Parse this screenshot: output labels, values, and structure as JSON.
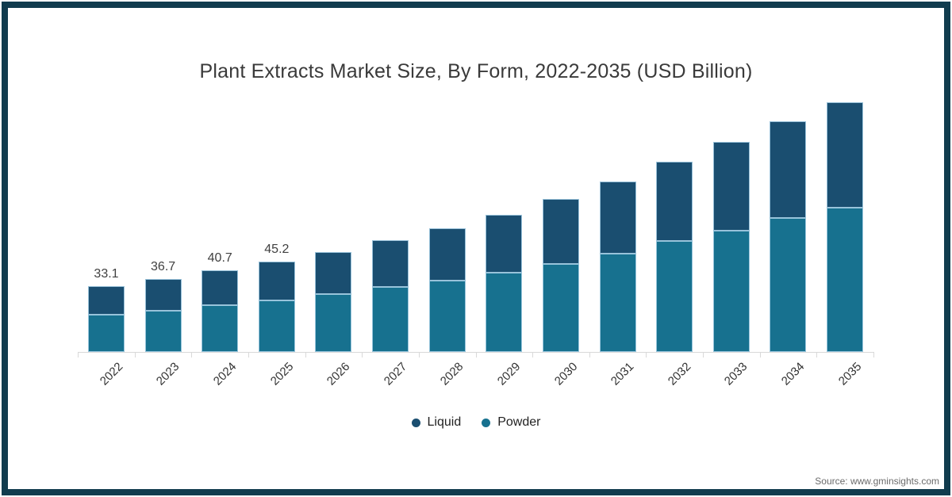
{
  "title": "Plant Extracts Market Size, By Form, 2022-2035 (USD Billion)",
  "source_note": "Source: www.gminsights.com",
  "colors": {
    "liquid": "#1a4e70",
    "powder": "#17718f",
    "segment_stroke": "#a6cee4",
    "frame_border": "#113c4e",
    "axis_line": "#d9d9d9"
  },
  "legend": {
    "items": [
      {
        "label": "Liquid",
        "color": "#1a4e70"
      },
      {
        "label": "Powder",
        "color": "#17718f"
      }
    ]
  },
  "chart_data": {
    "type": "bar",
    "stacked": true,
    "title": "Plant Extracts Market Size, By Form, 2022-2035 (USD Billion)",
    "xlabel": "",
    "ylabel": "USD Billion",
    "ylim": [
      0,
      133
    ],
    "grid": false,
    "legend_position": "bottom",
    "categories": [
      "2022",
      "2023",
      "2024",
      "2025",
      "2026",
      "2027",
      "2028",
      "2029",
      "2030",
      "2031",
      "2032",
      "2033",
      "2034",
      "2035"
    ],
    "series": [
      {
        "name": "Liquid",
        "color": "#1a4e70",
        "values": [
          14.3,
          15.9,
          17.3,
          19.4,
          21.0,
          23.3,
          26.3,
          29.1,
          32.4,
          36.2,
          40.0,
          44.5,
          48.4,
          52.9
        ]
      },
      {
        "name": "Powder",
        "color": "#17718f",
        "values": [
          18.8,
          20.8,
          23.4,
          25.8,
          29.1,
          32.5,
          35.6,
          39.7,
          44.2,
          49.3,
          55.4,
          60.7,
          67.1,
          72.3
        ]
      }
    ],
    "totals": [
      33.1,
      36.7,
      40.7,
      45.2,
      50.1,
      55.8,
      61.9,
      68.8,
      76.6,
      85.5,
      95.4,
      105.2,
      115.5,
      125.2
    ],
    "total_labels_shown": [
      "33.1",
      "36.7",
      "40.7",
      "45.2",
      "",
      "",
      "",
      "",
      "",
      "",
      "",
      "",
      "",
      ""
    ]
  }
}
